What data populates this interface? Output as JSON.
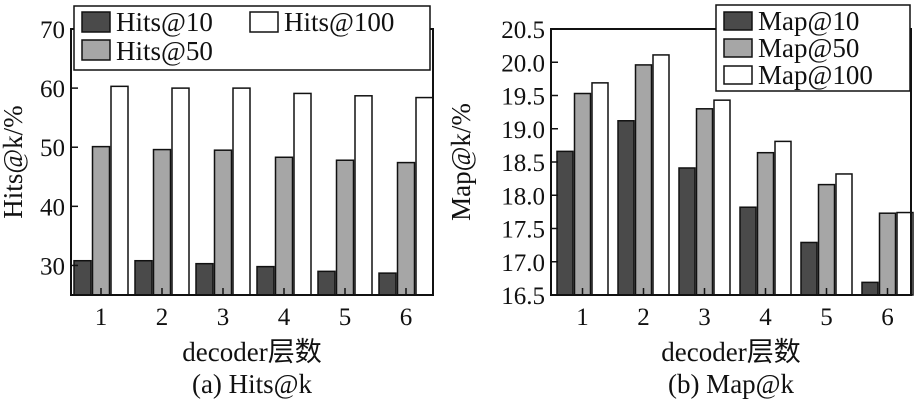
{
  "chart_data": [
    {
      "type": "bar",
      "categories": [
        "1",
        "2",
        "3",
        "4",
        "5",
        "6"
      ],
      "series": [
        {
          "name": "Hits@10",
          "values": [
            30.8,
            30.8,
            30.3,
            29.8,
            29.0,
            28.7
          ]
        },
        {
          "name": "Hits@50",
          "values": [
            50.1,
            49.6,
            49.5,
            48.3,
            47.8,
            47.4
          ]
        },
        {
          "name": "Hits@100",
          "values": [
            60.3,
            60.0,
            60.0,
            59.1,
            58.7,
            58.4
          ]
        }
      ],
      "xlabel": "decoder层数",
      "ylabel": "Hits@k/%",
      "ylim": [
        25,
        70
      ],
      "yticks": [
        "30",
        "40",
        "50",
        "60",
        "70"
      ],
      "caption": "(a) Hits@k",
      "legend_position": "top",
      "grid": false
    },
    {
      "type": "bar",
      "categories": [
        "1",
        "2",
        "3",
        "4",
        "5",
        "6"
      ],
      "series": [
        {
          "name": "Map@10",
          "values": [
            18.66,
            19.12,
            18.41,
            17.82,
            17.29,
            16.69
          ]
        },
        {
          "name": "Map@50",
          "values": [
            19.53,
            19.96,
            19.3,
            18.64,
            18.16,
            17.73
          ]
        },
        {
          "name": "Map@100",
          "values": [
            19.69,
            20.11,
            19.43,
            18.81,
            18.32,
            17.74
          ]
        }
      ],
      "xlabel": "decoder层数",
      "ylabel": "Map@k/%",
      "ylim": [
        16.5,
        20.5
      ],
      "yticks": [
        "16.5",
        "17.0",
        "17.5",
        "18.0",
        "18.5",
        "19.0",
        "19.5",
        "20.0",
        "20.5"
      ],
      "caption": "(b) Map@k",
      "legend_position": "top-right",
      "grid": false
    }
  ],
  "colors": {
    "series1": "#4a4a4a",
    "series2": "#a6a6a6",
    "series3": "#ffffff",
    "outline": "#111111"
  }
}
